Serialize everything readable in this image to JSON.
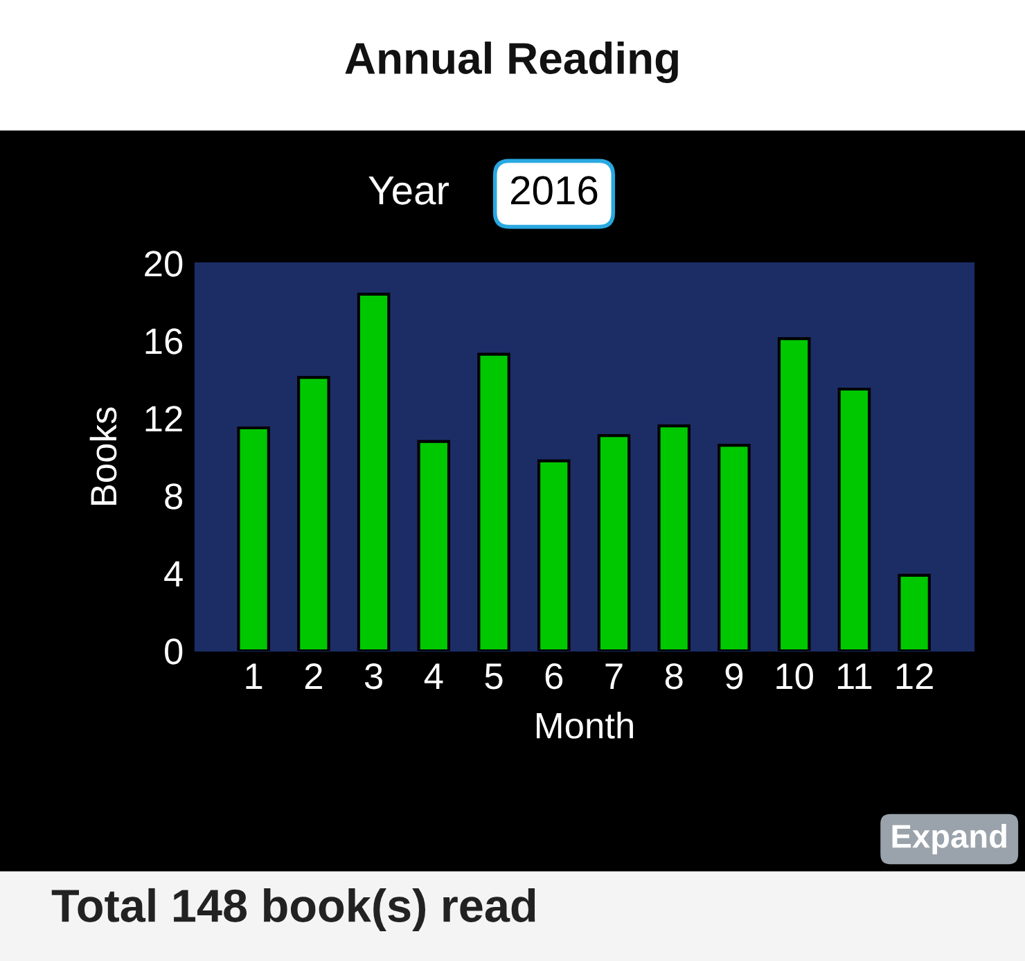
{
  "chart_data": {
    "type": "bar",
    "title": "Annual Reading",
    "xlabel": "Month",
    "ylabel": "Books",
    "categories": [
      "1",
      "2",
      "3",
      "4",
      "5",
      "6",
      "7",
      "8",
      "9",
      "10",
      "11",
      "12"
    ],
    "values": [
      11.5,
      14.1,
      18.4,
      10.8,
      15.3,
      9.8,
      11.1,
      11.6,
      10.6,
      16.1,
      13.5,
      3.9
    ],
    "color": "#00c800",
    "ylim": [
      0,
      20
    ],
    "yticks": [
      0,
      4,
      8,
      12,
      16,
      20
    ],
    "grid": false,
    "legend": false,
    "annotations": [
      "Year",
      "2016",
      "Expand",
      "Total 148 book(s) read"
    ]
  }
}
